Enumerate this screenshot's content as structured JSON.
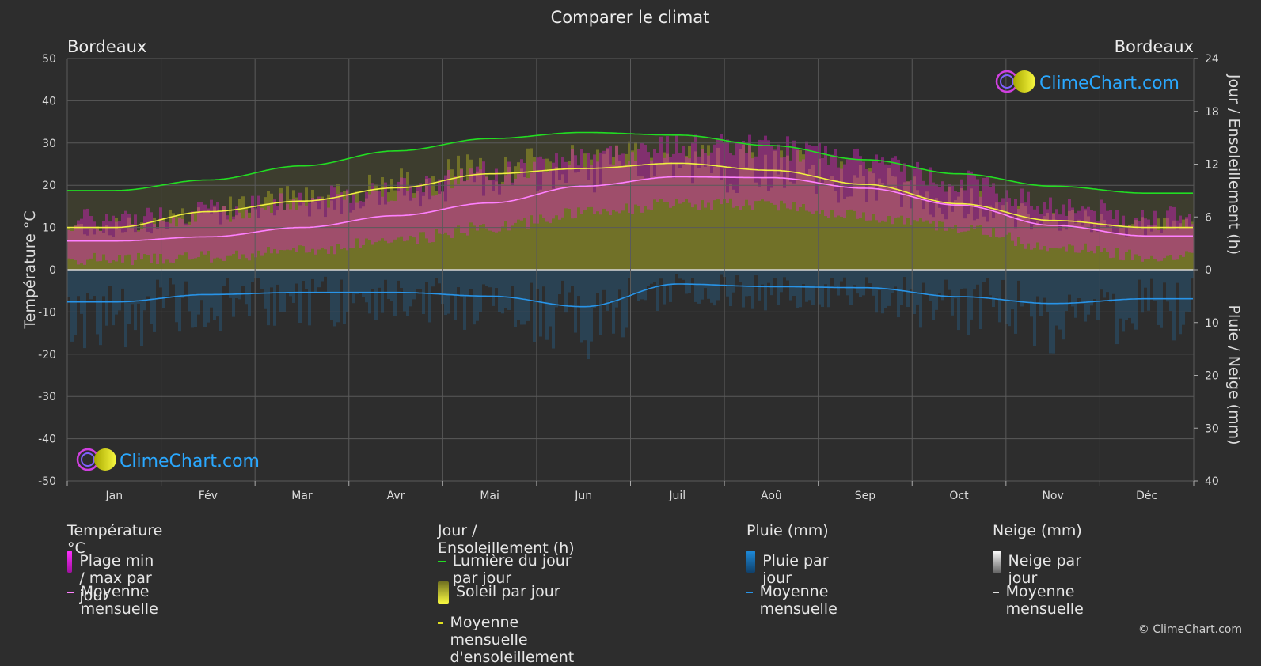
{
  "colors": {
    "bg": "#2d2d2d",
    "grid": "#5a5a5a",
    "temp_band": "#e020c8",
    "temp_mean": "#ff80ff",
    "daylight": "#22dd22",
    "sun_band": "#c8c820",
    "sun_mean": "#f0f040",
    "rain": "#1e8cdc",
    "rain_mean": "#2894e8",
    "snow": "#cccccc",
    "logo_text": "#2aa8ff"
  },
  "labels": {
    "title": "Comparer le climat",
    "city_left": "Bordeaux",
    "city_right": "Bordeaux",
    "logo": "ClimeChart.com",
    "copyright": "© ClimeChart.com"
  },
  "legend": {
    "temp": {
      "head": "Température °C",
      "band": "Plage min / max par jour",
      "mean": "Moyenne mensuelle"
    },
    "sun": {
      "head": "Jour / Ensoleillement (h)",
      "daylight": "Lumière du jour par jour",
      "band": "Soleil par jour",
      "mean": "Moyenne mensuelle d'ensoleillement"
    },
    "rain": {
      "head": "Pluie (mm)",
      "band": "Pluie par jour",
      "mean": "Moyenne mensuelle"
    },
    "snow": {
      "head": "Neige (mm)",
      "band": "Neige par jour",
      "mean": "Moyenne mensuelle"
    }
  },
  "chart_data": {
    "type": "line",
    "months": [
      "Jan",
      "Fév",
      "Mar",
      "Avr",
      "Mai",
      "Jun",
      "Juil",
      "Aoû",
      "Sep",
      "Oct",
      "Nov",
      "Déc"
    ],
    "y_left": {
      "label": "Température °C",
      "range": [
        -50,
        50
      ],
      "ticks": [
        50,
        40,
        30,
        20,
        10,
        0,
        -10,
        -20,
        -30,
        -40,
        -50
      ]
    },
    "y_right_top": {
      "label": "Jour / Ensoleillement (h)",
      "range": [
        0,
        24
      ],
      "ticks": [
        24,
        18,
        12,
        6,
        0
      ]
    },
    "y_right_bottom": {
      "label": "Pluie / Neige (mm)",
      "range": [
        0,
        40
      ],
      "ticks": [
        0,
        10,
        20,
        30,
        40
      ]
    },
    "series": [
      {
        "name": "Lumière du jour par jour",
        "unit": "h",
        "values": [
          9.0,
          10.2,
          11.8,
          13.5,
          14.9,
          15.6,
          15.3,
          14.1,
          12.5,
          10.9,
          9.5,
          8.7
        ]
      },
      {
        "name": "Moyenne mensuelle d'ensoleillement",
        "unit": "h",
        "values": [
          4.8,
          6.6,
          7.8,
          9.3,
          10.9,
          11.5,
          12.1,
          11.3,
          9.7,
          7.5,
          5.6,
          4.8
        ]
      },
      {
        "name": "Moyenne mensuelle (température)",
        "unit": "°C",
        "values": [
          6.8,
          7.8,
          10.0,
          12.8,
          15.8,
          19.8,
          22.0,
          21.8,
          19.3,
          15.3,
          10.5,
          8.0
        ]
      },
      {
        "name": "Moyenne mensuelle (pluie)",
        "unit": "mm",
        "values": [
          6.1,
          4.7,
          4.3,
          4.3,
          5.0,
          7.0,
          2.7,
          3.2,
          3.4,
          5.1,
          6.4,
          5.5
        ]
      },
      {
        "name": "Plage min / max par jour",
        "unit": "°C",
        "min": [
          2.5,
          3.0,
          4.5,
          7.0,
          10.0,
          13.5,
          15.5,
          15.5,
          12.8,
          10.0,
          5.5,
          3.3
        ],
        "max": [
          10.5,
          12.5,
          15.5,
          18.0,
          21.5,
          25.5,
          28.0,
          28.0,
          24.5,
          19.8,
          14.0,
          11.0
        ]
      }
    ]
  }
}
